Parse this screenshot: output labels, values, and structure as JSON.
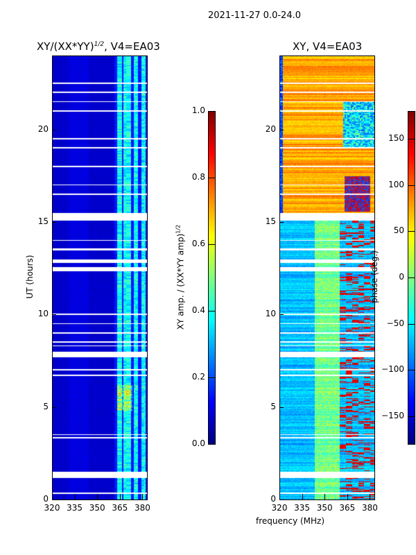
{
  "suptitle": "2021-11-27 0.0-24.0",
  "chart_data": [
    {
      "type": "heatmap",
      "title": "XY/(XX*YY)",
      "title_sup": "1/2",
      "title_suffix": ", V4=EA03",
      "xlabel": "frequency (MHz)",
      "ylabel": "UT (hours)",
      "xlim": [
        320,
        383
      ],
      "ylim": [
        0,
        24
      ],
      "xticks": [
        "320",
        "335",
        "350",
        "365",
        "380"
      ],
      "yticks": [
        "0",
        "5",
        "10",
        "15",
        "20"
      ],
      "colorbar": {
        "label": "XY amp. / (XX*YY amp)",
        "label_sup": "1/2",
        "range": [
          0,
          1
        ],
        "ticks": [
          "0.0",
          "0.2",
          "0.4",
          "0.6",
          "0.8",
          "1.0"
        ],
        "cmap": "jet"
      },
      "description_values": {
        "background_level": 0.07,
        "band_363_383_level": 0.35
      }
    },
    {
      "type": "heatmap",
      "title": "XY, V4=EA03",
      "xlim": [
        320,
        383
      ],
      "ylim": [
        0,
        24
      ],
      "xticks": [
        "320",
        "335",
        "350",
        "365",
        "380"
      ],
      "yticks": [
        "0",
        "5",
        "10",
        "15",
        "20"
      ],
      "colorbar": {
        "label": "phase (deg.)",
        "range": [
          -180,
          180
        ],
        "ticks": [
          "−150",
          "−100",
          "−50",
          "0",
          "50",
          "100",
          "150"
        ],
        "cmap": "jet"
      }
    }
  ],
  "gaps_ut": [
    [
      0.3,
      0.38
    ],
    [
      1.2,
      1.5
    ],
    [
      3.3,
      3.38
    ],
    [
      3.5,
      3.56
    ],
    [
      6.7,
      6.78
    ],
    [
      7.0,
      7.06
    ],
    [
      7.7,
      8.0
    ],
    [
      8.3,
      8.36
    ],
    [
      8.5,
      8.55
    ],
    [
      9.0,
      9.06
    ],
    [
      9.5,
      9.55
    ],
    [
      10.0,
      10.06
    ],
    [
      12.35,
      12.6
    ],
    [
      12.8,
      13.0
    ],
    [
      13.5,
      13.6
    ],
    [
      14.0,
      14.06
    ],
    [
      15.1,
      15.5
    ],
    [
      16.5,
      16.56
    ],
    [
      17.0,
      17.06
    ],
    [
      18.0,
      18.06
    ],
    [
      19.0,
      19.06
    ],
    [
      19.5,
      19.56
    ],
    [
      21.0,
      21.06
    ],
    [
      21.5,
      21.56
    ],
    [
      22.0,
      22.06
    ],
    [
      22.5,
      22.56
    ]
  ]
}
